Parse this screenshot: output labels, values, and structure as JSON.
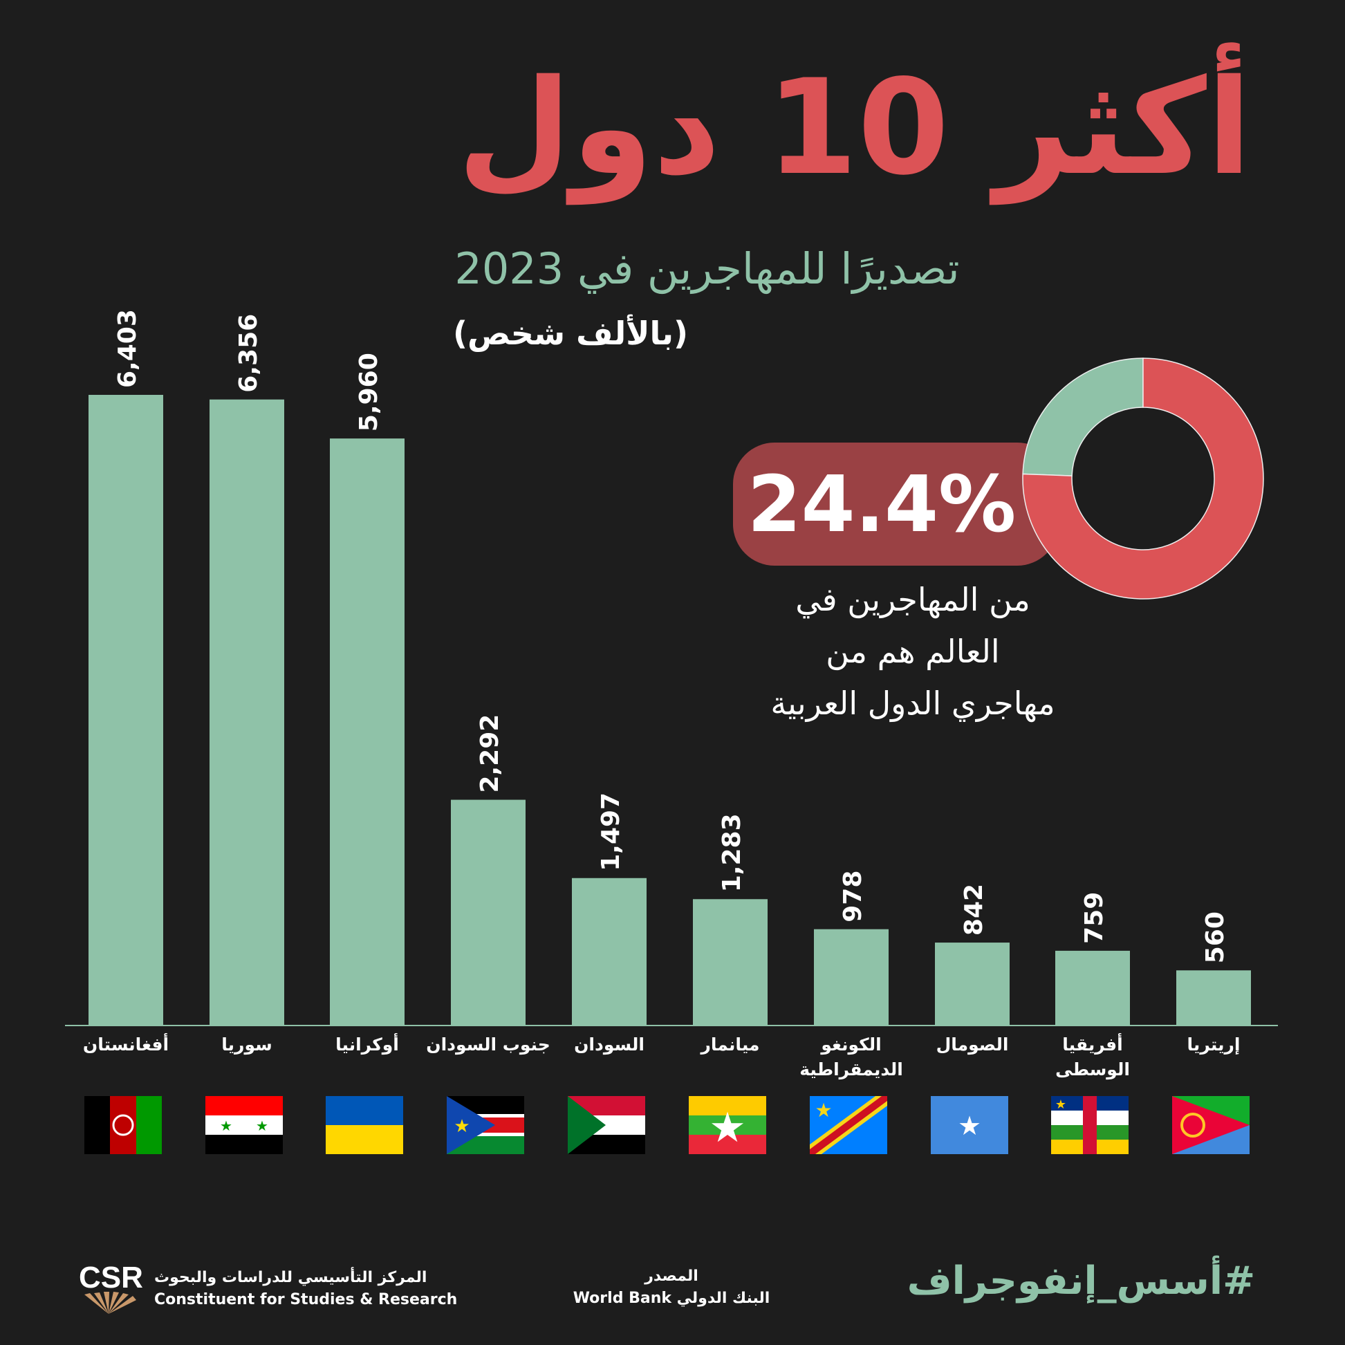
{
  "title": "أكثر 10 دول",
  "subtitle": "تصديرًا للمهاجرين في 2023",
  "unit_note": "(بالألف شخص)",
  "colors": {
    "background": "#1d1d1d",
    "bar": "#8fc2a8",
    "accent_red": "#dc5356",
    "pill": "#9a4144",
    "green": "#8fc2a8"
  },
  "chart_data": [
    {
      "type": "bar",
      "categories": [
        "أفغانستان",
        "سوريا",
        "أوكرانيا",
        "جنوب السودان",
        "السودان",
        "ميانمار",
        "الكونغو الديمقراطية",
        "الصومال",
        "أفريقيا الوسطى",
        "إريتريا"
      ],
      "values": [
        6403,
        6356,
        5960,
        2292,
        1497,
        1283,
        978,
        842,
        759,
        560
      ],
      "value_labels": [
        "6,403",
        "6,356",
        "5,960",
        "2,292",
        "1,497",
        "1,283",
        "978",
        "842",
        "759",
        "560"
      ],
      "ylim": [
        0,
        6403
      ],
      "grid": false,
      "flags": [
        "afghanistan-flag",
        "syria-flag",
        "ukraine-flag",
        "south-sudan-flag",
        "sudan-flag",
        "myanmar-flag",
        "dr-congo-flag",
        "somalia-flag",
        "central-african-republic-flag",
        "eritrea-flag"
      ]
    },
    {
      "type": "pie",
      "variant": "donut",
      "slices": [
        {
          "value": 24.4,
          "color": "#8fc2a8"
        },
        {
          "value": 75.6,
          "color": "#dc5356"
        }
      ]
    }
  ],
  "highlight": {
    "value": "24.4%",
    "lines": [
      "من المهاجرين في",
      "العالم هم من",
      "مهاجري الدول العربية"
    ]
  },
  "footer": {
    "hashtag": "#أسس_إنفوجراف",
    "source_label": "المصدر",
    "source": "البنك الدولي World Bank",
    "org_ar": "المركز التأسيسي للدراسات والبحوث",
    "org_en": "Constituent for Studies & Research",
    "logo_text": "CSR"
  }
}
